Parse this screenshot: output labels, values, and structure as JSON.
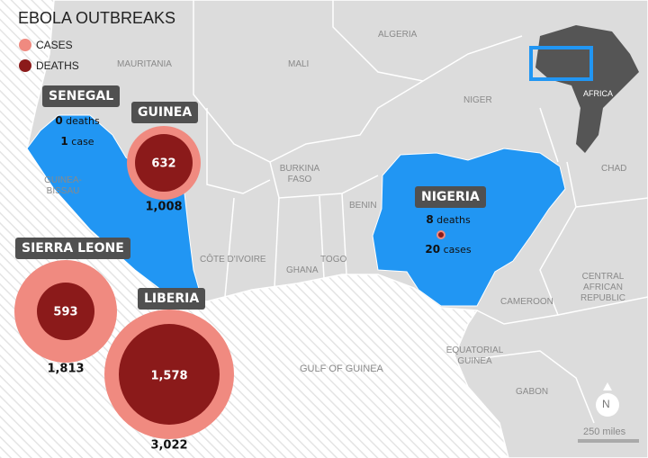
{
  "title": "EBOLA OUTBREAKS",
  "legend": [
    {
      "label": "CASES",
      "color": "#f08a80"
    },
    {
      "label": "DEATHS",
      "color": "#8b1a1a"
    }
  ],
  "colors": {
    "affected": "#2196f3",
    "land": "#dcdcdc",
    "ocean": "#ffffff",
    "tag": "#505050"
  },
  "countries": [
    {
      "name": "SENEGAL",
      "deaths": "0",
      "deaths_label": "deaths",
      "cases": "1",
      "cases_label": "case"
    },
    {
      "name": "GUINEA",
      "deaths": "632",
      "cases": "1,008"
    },
    {
      "name": "SIERRA LEONE",
      "deaths": "593",
      "cases": "1,813"
    },
    {
      "name": "LIBERIA",
      "deaths": "1,578",
      "cases": "3,022"
    },
    {
      "name": "NIGERIA",
      "deaths": "8",
      "deaths_label": "deaths",
      "cases": "20",
      "cases_label": "cases"
    }
  ],
  "labels": [
    "ALGERIA",
    "MAURITANIA",
    "MALI",
    "NIGER",
    "CHAD",
    "BURKINA FASO",
    "BENIN",
    "GUINEA-BISSAU",
    "CÔTE D'IVOIRE",
    "GHANA",
    "TOGO",
    "CAMEROON",
    "CENTRAL AFRICAN REPUBLIC",
    "EQUATORIAL GUINEA",
    "GABON",
    "GULF OF GUINEA"
  ],
  "inset": {
    "label": "AFRICA"
  },
  "compass": "N",
  "scale": "250 miles"
}
